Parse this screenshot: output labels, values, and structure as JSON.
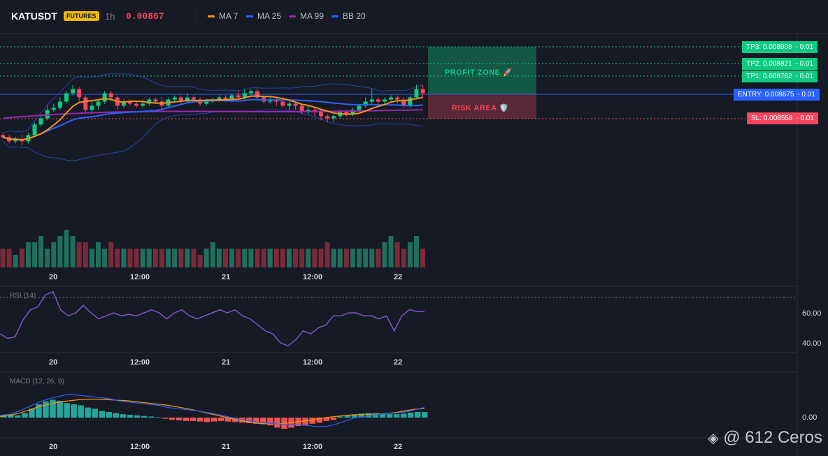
{
  "header": {
    "symbol": "KATUSDT",
    "badge": "FUTURES",
    "interval": "1h",
    "price": "0.00867",
    "indicators": [
      {
        "label": "MA 7",
        "color": "#f7931a"
      },
      {
        "label": "MA 25",
        "color": "#2962ff"
      },
      {
        "label": "MA 99",
        "color": "#9c27b0"
      },
      {
        "label": "BB 20",
        "color": "#2962ff"
      }
    ]
  },
  "levels": {
    "tp3": {
      "label": "TP3: 0.008908",
      "qty": "- 0.01",
      "color": "#0ecb81"
    },
    "tp2": {
      "label": "TP2: 0.008821",
      "qty": "- 0.01",
      "color": "#0ecb81"
    },
    "tp1": {
      "label": "TP1: 0.008762",
      "qty": "- 0.01",
      "color": "#0ecb81"
    },
    "entry": {
      "label": "ENTRY: 0.008675",
      "qty": "- 0.01",
      "color": "#2962ff"
    },
    "sl": {
      "label": "SL: 0.008558",
      "qty": "- 0.01",
      "color": "#f6465d"
    }
  },
  "zones": {
    "profit": "PROFIT ZONE 🚀",
    "risk": "RISK AREA 🛡️"
  },
  "time_axis": [
    "20",
    "12:00",
    "21",
    "12:00",
    "22"
  ],
  "rsi": {
    "label": "RSI (14)",
    "ticks": [
      "60.00",
      "40.00"
    ],
    "values": [
      46,
      43,
      44,
      55,
      62,
      64,
      72,
      74,
      62,
      58,
      60,
      65,
      60,
      56,
      58,
      60,
      58,
      59,
      58,
      60,
      62,
      60,
      56,
      60,
      62,
      58,
      56,
      58,
      60,
      62,
      60,
      62,
      58,
      56,
      52,
      48,
      46,
      40,
      38,
      42,
      48,
      46,
      50,
      52,
      58,
      58,
      60,
      60,
      58,
      58,
      56,
      58,
      48,
      58,
      62,
      61,
      61
    ]
  },
  "macd": {
    "label": "MACD (12, 26, 9)",
    "ticks": [
      "0.00"
    ],
    "histogram": [
      0.5,
      0.6,
      0.4,
      0.8,
      1.6,
      2.4,
      2.9,
      3.2,
      3.0,
      2.6,
      2.4,
      2.2,
      1.8,
      1.6,
      1.2,
      1.0,
      0.8,
      0.6,
      0.5,
      0.4,
      0.3,
      0.2,
      0.1,
      -0.2,
      -0.4,
      -0.5,
      -0.6,
      -0.6,
      -0.7,
      -0.8,
      -0.7,
      -0.6,
      -0.7,
      -0.8,
      -0.9,
      -1.0,
      -1.1,
      -1.2,
      -1.4,
      -1.8,
      -2.0,
      -1.8,
      -1.5,
      -1.3,
      -1.1,
      -0.9,
      -0.6,
      -0.4,
      0.2,
      0.4,
      0.6,
      0.7,
      0.8,
      0.8,
      0.7,
      0.6,
      0.6,
      0.7,
      0.9,
      1.0,
      1.0
    ],
    "macd_line": [
      0.4,
      0.6,
      1.2,
      2.0,
      2.8,
      3.4,
      3.8,
      4.2,
      4.0,
      3.8,
      3.6,
      3.4,
      3.0,
      2.8,
      2.6,
      2.4,
      2.2,
      1.8,
      1.6,
      1.4,
      1.2,
      0.9,
      0.6,
      0.2,
      -0.2,
      -0.5,
      -0.8,
      -1.0,
      -1.1,
      -1.2,
      -1.3,
      -1.4,
      -1.6,
      -1.6,
      -1.2,
      -0.6,
      0.0,
      0.2,
      0.5,
      0.7,
      0.8,
      1.0,
      1.4,
      1.8
    ],
    "signal_line": [
      0.2,
      0.4,
      0.8,
      1.4,
      2.0,
      2.4,
      2.8,
      3.0,
      3.2,
      3.3,
      3.3,
      3.2,
      3.1,
      3.0,
      2.8,
      2.6,
      2.4,
      2.2,
      1.9,
      1.6,
      1.2,
      0.8,
      0.4,
      0.0,
      -0.4,
      -0.7,
      -1.0,
      -1.1,
      -1.1,
      -1.0,
      -0.8,
      -0.6,
      -0.3,
      0.0,
      0.2,
      0.4,
      0.5,
      0.6,
      0.6,
      0.7,
      0.9,
      1.2,
      1.5,
      1.6
    ]
  },
  "candles": [
    [
      0.00848,
      0.00847,
      0.00849,
      0.00846
    ],
    [
      0.00847,
      0.00845,
      0.00848,
      0.00844
    ],
    [
      0.00845,
      0.00846,
      0.00847,
      0.00844
    ],
    [
      0.00846,
      0.00845,
      0.00848,
      0.00843
    ],
    [
      0.00845,
      0.00848,
      0.00849,
      0.00844
    ],
    [
      0.00848,
      0.00853,
      0.00854,
      0.00847
    ],
    [
      0.00853,
      0.00856,
      0.00857,
      0.00852
    ],
    [
      0.00856,
      0.0086,
      0.00862,
      0.00855
    ],
    [
      0.0086,
      0.00861,
      0.00863,
      0.00859
    ],
    [
      0.00861,
      0.00864,
      0.00866,
      0.0086
    ],
    [
      0.00864,
      0.00868,
      0.00869,
      0.00863
    ],
    [
      0.00868,
      0.0087,
      0.00872,
      0.00867
    ],
    [
      0.0087,
      0.00866,
      0.00871,
      0.00864
    ],
    [
      0.00866,
      0.0086,
      0.00867,
      0.00859
    ],
    [
      0.0086,
      0.00862,
      0.00864,
      0.00858
    ],
    [
      0.00862,
      0.00864,
      0.00865,
      0.0086
    ],
    [
      0.00864,
      0.00868,
      0.00869,
      0.00863
    ],
    [
      0.00868,
      0.00866,
      0.00869,
      0.00864
    ],
    [
      0.00866,
      0.00862,
      0.00867,
      0.0086
    ],
    [
      0.00862,
      0.00864,
      0.00865,
      0.00861
    ],
    [
      0.00864,
      0.00863,
      0.00865,
      0.00862
    ],
    [
      0.00863,
      0.00862,
      0.00864,
      0.00861
    ],
    [
      0.00862,
      0.00863,
      0.00865,
      0.00861
    ],
    [
      0.00863,
      0.00865,
      0.00866,
      0.00862
    ],
    [
      0.00865,
      0.00864,
      0.00866,
      0.00863
    ],
    [
      0.00864,
      0.00862,
      0.00866,
      0.0086
    ],
    [
      0.00862,
      0.00865,
      0.00866,
      0.00861
    ],
    [
      0.00865,
      0.00866,
      0.00867,
      0.00864
    ],
    [
      0.00866,
      0.00864,
      0.00867,
      0.00863
    ],
    [
      0.00864,
      0.00866,
      0.00868,
      0.00863
    ],
    [
      0.00866,
      0.00865,
      0.00867,
      0.00864
    ],
    [
      0.00865,
      0.00863,
      0.00866,
      0.00862
    ],
    [
      0.00863,
      0.00864,
      0.00865,
      0.00862
    ],
    [
      0.00864,
      0.00865,
      0.00866,
      0.00863
    ],
    [
      0.00865,
      0.00866,
      0.00867,
      0.00864
    ],
    [
      0.00866,
      0.00865,
      0.00867,
      0.00864
    ],
    [
      0.00865,
      0.00867,
      0.00868,
      0.00864
    ],
    [
      0.00867,
      0.00866,
      0.00869,
      0.00865
    ],
    [
      0.00866,
      0.00868,
      0.0087,
      0.00865
    ],
    [
      0.00868,
      0.00869,
      0.0087,
      0.00867
    ],
    [
      0.00869,
      0.00866,
      0.0087,
      0.00865
    ],
    [
      0.00866,
      0.00864,
      0.00867,
      0.00863
    ],
    [
      0.00864,
      0.00865,
      0.00866,
      0.00863
    ],
    [
      0.00865,
      0.00864,
      0.00866,
      0.00862
    ],
    [
      0.00864,
      0.00862,
      0.00865,
      0.00861
    ],
    [
      0.00862,
      0.00863,
      0.00864,
      0.0086
    ],
    [
      0.00863,
      0.00862,
      0.00864,
      0.0086
    ],
    [
      0.00862,
      0.00859,
      0.00863,
      0.00858
    ],
    [
      0.00859,
      0.0086,
      0.00862,
      0.00858
    ],
    [
      0.0086,
      0.00859,
      0.00861,
      0.00857
    ],
    [
      0.00859,
      0.00857,
      0.0086,
      0.00855
    ],
    [
      0.00857,
      0.00856,
      0.00858,
      0.00854
    ],
    [
      0.00856,
      0.00857,
      0.00858,
      0.00854
    ],
    [
      0.00857,
      0.00859,
      0.0086,
      0.00856
    ],
    [
      0.00859,
      0.00858,
      0.0086,
      0.00857
    ],
    [
      0.00858,
      0.0086,
      0.00861,
      0.00857
    ],
    [
      0.0086,
      0.00862,
      0.00863,
      0.00859
    ],
    [
      0.00862,
      0.00864,
      0.00866,
      0.00861
    ],
    [
      0.00864,
      0.00865,
      0.0087,
      0.00863
    ],
    [
      0.00865,
      0.00864,
      0.00866,
      0.00863
    ],
    [
      0.00864,
      0.00865,
      0.00866,
      0.00863
    ],
    [
      0.00865,
      0.00866,
      0.00867,
      0.00864
    ],
    [
      0.00866,
      0.00865,
      0.00867,
      0.00863
    ],
    [
      0.00865,
      0.00862,
      0.00866,
      0.00861
    ],
    [
      0.00862,
      0.00866,
      0.00867,
      0.00861
    ],
    [
      0.00866,
      0.0087,
      0.00872,
      0.00865
    ],
    [
      0.0087,
      0.00868,
      0.00872,
      0.00866
    ]
  ],
  "volumes": [
    3,
    3,
    2,
    3,
    4,
    4,
    5,
    3,
    4,
    5,
    6,
    5,
    4,
    4,
    3,
    4,
    3,
    4,
    3,
    3,
    3,
    3,
    3,
    3,
    3,
    3,
    3,
    3,
    3,
    3,
    3,
    2,
    3,
    4,
    3,
    3,
    3,
    3,
    3,
    3,
    3,
    3,
    3,
    3,
    3,
    3,
    3,
    3,
    3,
    3,
    3,
    4,
    3,
    3,
    3,
    3,
    3,
    3,
    3,
    3,
    4,
    5,
    4,
    3,
    4,
    5,
    3
  ],
  "watermark": "@ 612 Ceros"
}
